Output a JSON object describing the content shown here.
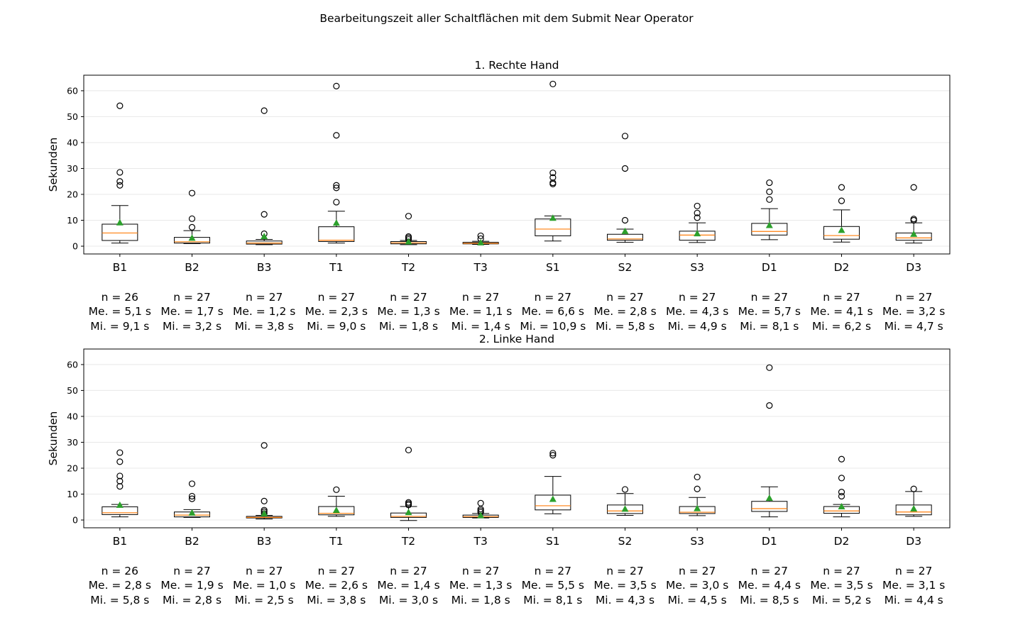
{
  "figure": {
    "title": "Bearbeitungszeit aller Schaltflächen mit dem Submit Near Operator"
  },
  "chart_data": [
    {
      "type": "box",
      "title": "1. Rechte Hand",
      "ylabel": "Sekunden",
      "ylim": [
        -3,
        66
      ],
      "yticks": [
        0,
        10,
        20,
        30,
        40,
        50,
        60
      ],
      "grid": "horizontal",
      "categories": [
        "B1",
        "B2",
        "B3",
        "T1",
        "T2",
        "T3",
        "S1",
        "S2",
        "S3",
        "D1",
        "D2",
        "D3"
      ],
      "boxes": [
        {
          "lw": 1.2,
          "q1": 2.2,
          "med": 5.1,
          "q3": 8.5,
          "hw": 15.7,
          "mean": 9.1,
          "fliers": [
            23.5,
            25.0,
            28.5,
            54.2
          ]
        },
        {
          "lw": 1.0,
          "q1": 1.2,
          "med": 1.7,
          "q3": 3.4,
          "hw": 6.0,
          "mean": 3.2,
          "fliers": [
            7.3,
            10.6,
            20.5
          ]
        },
        {
          "lw": 0.6,
          "q1": 0.8,
          "med": 1.2,
          "q3": 2.0,
          "hw": 2.6,
          "mean": 3.8,
          "fliers": [
            4.8,
            12.3,
            52.3
          ]
        },
        {
          "lw": 1.2,
          "q1": 1.8,
          "med": 2.3,
          "q3": 7.5,
          "hw": 13.5,
          "mean": 9.0,
          "fliers": [
            17.0,
            22.5,
            23.5,
            42.8,
            61.8
          ]
        },
        {
          "lw": 0.6,
          "q1": 0.9,
          "med": 1.3,
          "q3": 1.8,
          "hw": 2.2,
          "mean": 1.8,
          "fliers": [
            2.6,
            3.2,
            3.7,
            11.6
          ]
        },
        {
          "lw": 0.7,
          "q1": 0.9,
          "med": 1.1,
          "q3": 1.5,
          "hw": 1.9,
          "mean": 1.4,
          "fliers": [
            2.9,
            4.0
          ]
        },
        {
          "lw": 2.0,
          "q1": 4.0,
          "med": 6.6,
          "q3": 10.5,
          "hw": 11.7,
          "mean": 10.9,
          "fliers": [
            24.0,
            24.5,
            26.5,
            28.3,
            62.6
          ]
        },
        {
          "lw": 1.5,
          "q1": 2.3,
          "med": 2.8,
          "q3": 4.6,
          "hw": 6.6,
          "mean": 5.8,
          "fliers": [
            10.0,
            30.0,
            42.5
          ]
        },
        {
          "lw": 1.4,
          "q1": 2.3,
          "med": 4.3,
          "q3": 5.8,
          "hw": 9.0,
          "mean": 4.9,
          "fliers": [
            11.0,
            12.8,
            15.5
          ]
        },
        {
          "lw": 2.5,
          "q1": 4.3,
          "med": 5.7,
          "q3": 8.8,
          "hw": 14.5,
          "mean": 8.1,
          "fliers": [
            18.0,
            21.0,
            24.5
          ]
        },
        {
          "lw": 1.6,
          "q1": 2.7,
          "med": 4.1,
          "q3": 7.6,
          "hw": 14.0,
          "mean": 6.2,
          "fliers": [
            17.5,
            22.7
          ]
        },
        {
          "lw": 1.2,
          "q1": 2.3,
          "med": 3.2,
          "q3": 5.1,
          "hw": 9.0,
          "mean": 4.7,
          "fliers": [
            10.0,
            10.5,
            22.7
          ]
        }
      ],
      "stats": [
        {
          "n": "n = 26",
          "me": "Me. = 5,1 s",
          "mi": "Mi. = 9,1 s"
        },
        {
          "n": "n = 27",
          "me": "Me. = 1,7 s",
          "mi": "Mi. = 3,2 s"
        },
        {
          "n": "n = 27",
          "me": "Me. = 1,2 s",
          "mi": "Mi. = 3,8 s"
        },
        {
          "n": "n = 27",
          "me": "Me. = 2,3 s",
          "mi": "Mi. = 9,0 s"
        },
        {
          "n": "n = 27",
          "me": "Me. = 1,3 s",
          "mi": "Mi. = 1,8 s"
        },
        {
          "n": "n = 27",
          "me": "Me. = 1,1 s",
          "mi": "Mi. = 1,4 s"
        },
        {
          "n": "n = 27",
          "me": "Me. = 6,6 s",
          "mi": "Mi. = 10,9 s"
        },
        {
          "n": "n = 27",
          "me": "Me. = 2,8 s",
          "mi": "Mi. = 5,8 s"
        },
        {
          "n": "n = 27",
          "me": "Me. = 4,3 s",
          "mi": "Mi. = 4,9 s"
        },
        {
          "n": "n = 27",
          "me": "Me. = 5,7 s",
          "mi": "Mi. = 8,1 s"
        },
        {
          "n": "n = 27",
          "me": "Me. = 4,1 s",
          "mi": "Mi. = 6,2 s"
        },
        {
          "n": "n = 27",
          "me": "Me. = 3,2 s",
          "mi": "Mi. = 4,7 s"
        }
      ]
    },
    {
      "type": "box",
      "title": "2. Linke Hand",
      "ylabel": "Sekunden",
      "ylim": [
        -3,
        66
      ],
      "yticks": [
        0,
        10,
        20,
        30,
        40,
        50,
        60
      ],
      "grid": "horizontal",
      "categories": [
        "B1",
        "B2",
        "B3",
        "T1",
        "T2",
        "T3",
        "S1",
        "S2",
        "S3",
        "D1",
        "D2",
        "D3"
      ],
      "boxes": [
        {
          "lw": 1.2,
          "q1": 2.1,
          "med": 2.8,
          "q3": 5.1,
          "hw": 6.0,
          "mean": 5.8,
          "fliers": [
            13.0,
            15.0,
            17.0,
            22.5,
            26.0
          ]
        },
        {
          "lw": 1.0,
          "q1": 1.2,
          "med": 1.9,
          "q3": 3.1,
          "hw": 4.0,
          "mean": 2.8,
          "fliers": [
            8.2,
            9.2,
            14.0
          ]
        },
        {
          "lw": 0.4,
          "q1": 0.8,
          "med": 1.0,
          "q3": 1.4,
          "hw": 1.8,
          "mean": 2.5,
          "fliers": [
            2.5,
            3.2,
            3.8,
            7.3,
            28.8
          ]
        },
        {
          "lw": 1.4,
          "q1": 2.0,
          "med": 2.6,
          "q3": 5.2,
          "hw": 9.2,
          "mean": 3.8,
          "fliers": [
            11.7
          ]
        },
        {
          "lw": -0.2,
          "q1": 1.0,
          "med": 1.4,
          "q3": 2.7,
          "hw": 5.2,
          "mean": 3.0,
          "fliers": [
            5.8,
            6.3,
            6.8,
            27.0
          ]
        },
        {
          "lw": 0.8,
          "q1": 1.0,
          "med": 1.3,
          "q3": 1.9,
          "hw": 2.5,
          "mean": 1.8,
          "fliers": [
            3.0,
            3.6,
            4.2,
            6.5
          ]
        },
        {
          "lw": 2.4,
          "q1": 3.9,
          "med": 5.5,
          "q3": 9.6,
          "hw": 16.8,
          "mean": 8.1,
          "fliers": [
            25.0,
            25.8
          ]
        },
        {
          "lw": 1.8,
          "q1": 2.5,
          "med": 3.5,
          "q3": 5.8,
          "hw": 10.2,
          "mean": 4.3,
          "fliers": [
            11.8
          ]
        },
        {
          "lw": 1.7,
          "q1": 2.5,
          "med": 3.0,
          "q3": 5.2,
          "hw": 8.7,
          "mean": 4.5,
          "fliers": [
            12.0,
            16.6
          ]
        },
        {
          "lw": 1.2,
          "q1": 3.3,
          "med": 4.4,
          "q3": 7.2,
          "hw": 12.8,
          "mean": 8.5,
          "fliers": [
            44.2,
            58.8
          ]
        },
        {
          "lw": 1.2,
          "q1": 2.6,
          "med": 3.5,
          "q3": 5.2,
          "hw": 6.0,
          "mean": 5.2,
          "fliers": [
            9.2,
            10.8,
            16.2,
            23.5
          ]
        },
        {
          "lw": 1.4,
          "q1": 2.0,
          "med": 3.1,
          "q3": 5.8,
          "hw": 11.0,
          "mean": 4.4,
          "fliers": [
            12.0
          ]
        }
      ],
      "stats": [
        {
          "n": "n = 26",
          "me": "Me. = 2,8 s",
          "mi": "Mi. = 5,8 s"
        },
        {
          "n": "n = 27",
          "me": "Me. = 1,9 s",
          "mi": "Mi. = 2,8 s"
        },
        {
          "n": "n = 27",
          "me": "Me. = 1,0 s",
          "mi": "Mi. = 2,5 s"
        },
        {
          "n": "n = 27",
          "me": "Me. = 2,6 s",
          "mi": "Mi. = 3,8 s"
        },
        {
          "n": "n = 27",
          "me": "Me. = 1,4 s",
          "mi": "Mi. = 3,0 s"
        },
        {
          "n": "n = 27",
          "me": "Me. = 1,3 s",
          "mi": "Mi. = 1,8 s"
        },
        {
          "n": "n = 27",
          "me": "Me. = 5,5 s",
          "mi": "Mi. = 8,1 s"
        },
        {
          "n": "n = 27",
          "me": "Me. = 3,5 s",
          "mi": "Mi. = 4,3 s"
        },
        {
          "n": "n = 27",
          "me": "Me. = 3,0 s",
          "mi": "Mi. = 4,5 s"
        },
        {
          "n": "n = 27",
          "me": "Me. = 4,4 s",
          "mi": "Mi. = 8,5 s"
        },
        {
          "n": "n = 27",
          "me": "Me. = 3,5 s",
          "mi": "Mi. = 5,2 s"
        },
        {
          "n": "n = 27",
          "me": "Me. = 3,1 s",
          "mi": "Mi. = 4,4 s"
        }
      ]
    }
  ],
  "colors": {
    "median": "#ff7f0e",
    "mean": "#2ca02c",
    "box": "#000000",
    "grid": "#e8e8e8"
  }
}
